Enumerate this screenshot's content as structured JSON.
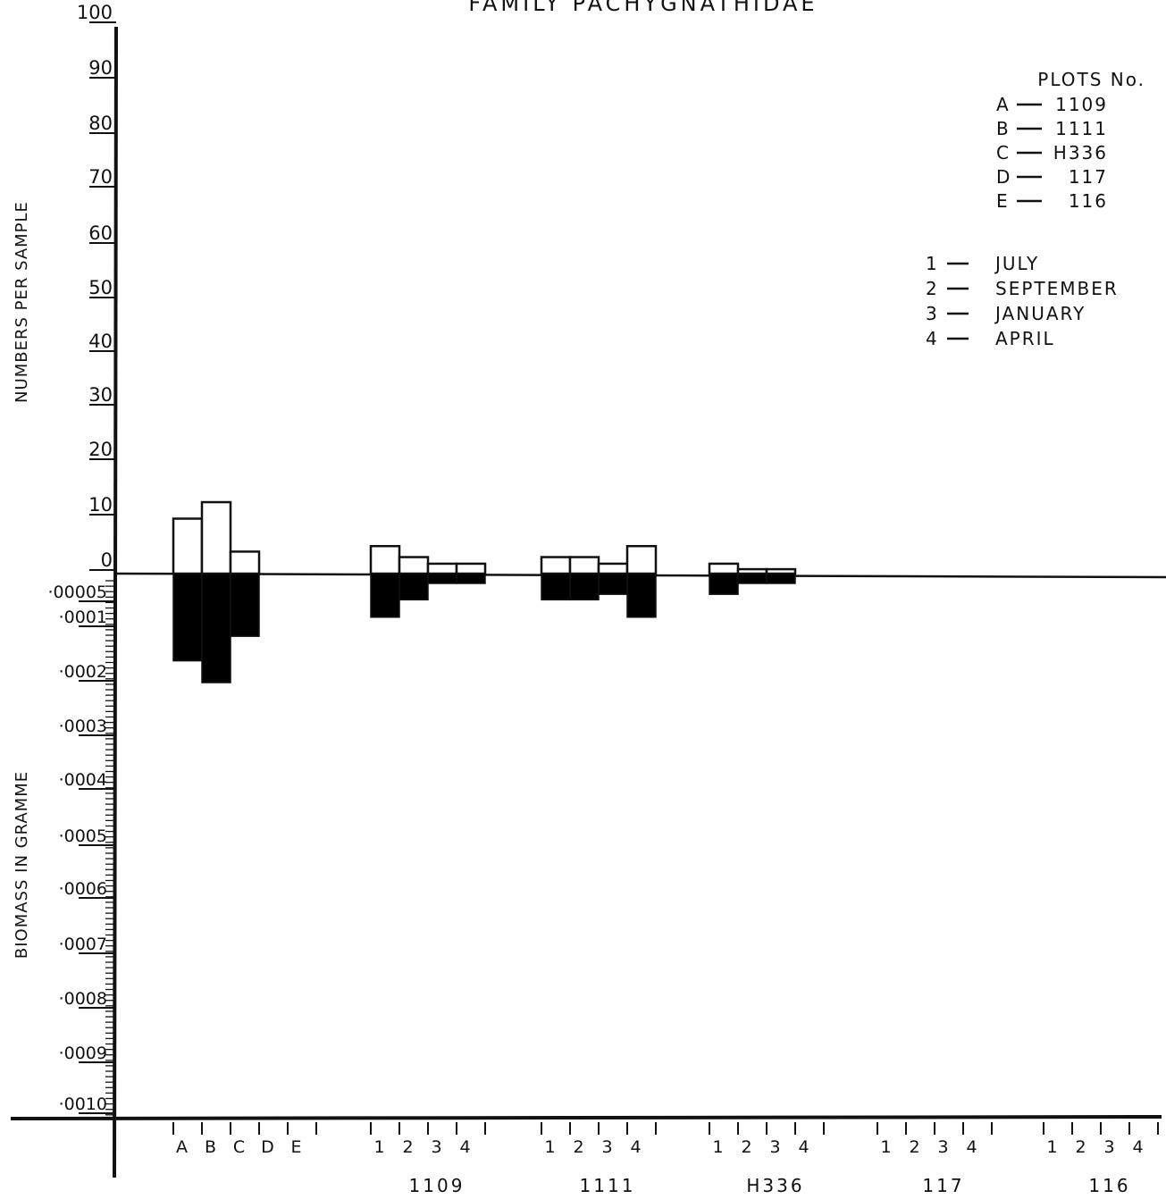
{
  "chart_data": {
    "type": "bar",
    "title": "FAMILY    PACHYGNATHIDAE",
    "ylabel_top": "NUMBERS  PER  SAMPLE",
    "ylabel_bottom": "BIOMASS  IN  GRAMME",
    "numbers_ticks": [
      "100",
      "90",
      "80",
      "70",
      "60",
      "50",
      "40",
      "30",
      "20",
      "10",
      "0"
    ],
    "numbers_range": [
      0,
      100
    ],
    "biomass_ticks": [
      "·00005",
      "·0001",
      "·0002",
      "·0003",
      "·0004",
      "·0005",
      "·0006",
      "·0007",
      "·0008",
      "·0009",
      "·0010"
    ],
    "biomass_range": [
      0,
      0.001
    ],
    "legend_title": "PLOTS No.",
    "plots_legend": [
      {
        "key": "A",
        "value": "1109"
      },
      {
        "key": "B",
        "value": "1111"
      },
      {
        "key": "C",
        "value": "H336"
      },
      {
        "key": "D",
        "value": "117"
      },
      {
        "key": "E",
        "value": "116"
      }
    ],
    "months_legend": [
      {
        "key": "1",
        "value": "JULY"
      },
      {
        "key": "2",
        "value": "SEPTEMBER"
      },
      {
        "key": "3",
        "value": "JANUARY"
      },
      {
        "key": "4",
        "value": "APRIL"
      }
    ],
    "groups": [
      {
        "label": "",
        "categories": [
          "A",
          "B",
          "C",
          "D",
          "E"
        ],
        "numbers": [
          10,
          13,
          4,
          0,
          0
        ],
        "biomass": [
          0.00016,
          0.0002,
          0.000115,
          0,
          0
        ]
      },
      {
        "label": "1109",
        "categories": [
          "1",
          "2",
          "3",
          "4"
        ],
        "numbers": [
          5,
          3,
          1.8,
          1.8
        ],
        "biomass": [
          8e-05,
          4.8e-05,
          1.8e-05,
          1.8e-05
        ]
      },
      {
        "label": "1111",
        "categories": [
          "1",
          "2",
          "3",
          "4"
        ],
        "numbers": [
          3,
          3,
          1.8,
          5
        ],
        "biomass": [
          4.8e-05,
          4.8e-05,
          3.8e-05,
          8e-05
        ]
      },
      {
        "label": "H336",
        "categories": [
          "1",
          "2",
          "3",
          "4"
        ],
        "numbers": [
          1.8,
          0.8,
          0.8,
          0
        ],
        "biomass": [
          3.8e-05,
          1.8e-05,
          1.8e-05,
          0
        ]
      },
      {
        "label": "117",
        "categories": [
          "1",
          "2",
          "3",
          "4"
        ],
        "numbers": [
          0,
          0,
          0,
          0
        ],
        "biomass": [
          0,
          0,
          0,
          0
        ]
      },
      {
        "label": "116",
        "categories": [
          "1",
          "2",
          "3",
          "4"
        ],
        "numbers": [
          0,
          0,
          0,
          0
        ],
        "biomass": [
          0,
          0,
          0,
          0
        ]
      }
    ],
    "colors": {
      "numbers_fill": "#ffffff",
      "biomass_fill": "#000000",
      "ink": "#111111"
    },
    "grid": false
  }
}
